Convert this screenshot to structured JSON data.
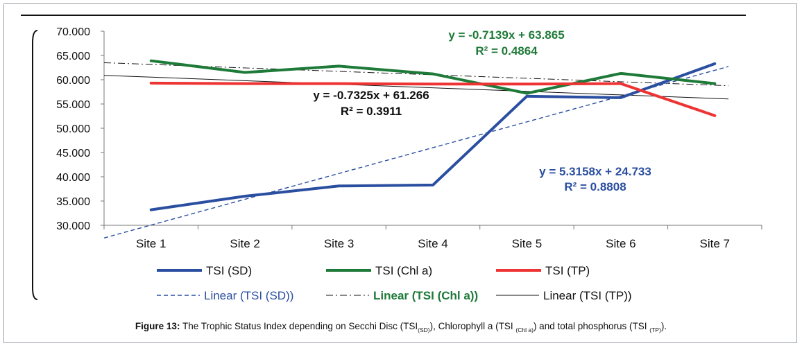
{
  "chart_data": {
    "type": "line",
    "categories": [
      "Site 1",
      "Site 2",
      "Site 3",
      "Site 4",
      "Site 5",
      "Site 6",
      "Site 7"
    ],
    "ylim": [
      30,
      70
    ],
    "yticks": [
      "30.000",
      "35.000",
      "40.000",
      "45.000",
      "50.000",
      "55.000",
      "60.000",
      "65.000",
      "70.000"
    ],
    "grid": false,
    "legend_position": "bottom",
    "series": [
      {
        "name": "TSI (SD)",
        "color": "#2a4ea0",
        "values": [
          33.2,
          36.0,
          38.1,
          38.3,
          56.6,
          56.3,
          63.3
        ]
      },
      {
        "name": "TSI (Chl a)",
        "color": "#1e7a38",
        "values": [
          63.9,
          61.5,
          62.8,
          61.2,
          57.2,
          61.3,
          59.2
        ]
      },
      {
        "name": "TSI (TP)",
        "color": "#ee3333",
        "values": [
          59.3,
          59.2,
          59.2,
          59.1,
          59.1,
          59.2,
          52.6
        ]
      }
    ],
    "trendlines": [
      {
        "name": "Linear (TSI (SD))",
        "color": "#2a4ea0",
        "slope": 5.3158,
        "intercept": 24.733,
        "equation": "y = 5.3158x + 24.733",
        "r2": "R² = 0.8808"
      },
      {
        "name": "Linear (TSI (Chl a))",
        "color": "#111111",
        "label_color": "#1e7a38",
        "slope": -0.7139,
        "intercept": 63.865,
        "equation": "y = -0.7139x + 63.865",
        "r2": "R² = 0.4864"
      },
      {
        "name": "Linear (TSI (TP))",
        "color": "#111111",
        "slope": -0.7325,
        "intercept": 61.266,
        "equation": "y = -0.7325x + 61.266",
        "r2": "R² = 0.3911"
      }
    ]
  },
  "caption": {
    "label": "Figure 13:",
    "text1": " The Trophic Status Index depending on Secchi Disc (TSI",
    "sub1": "(SD)",
    "text2": "), Chlorophyll a (TSI ",
    "sub2": "(Chl a)",
    "text3": ") and total phosphorus (TSI ",
    "sub3": "(TP)",
    "text4": ")."
  }
}
